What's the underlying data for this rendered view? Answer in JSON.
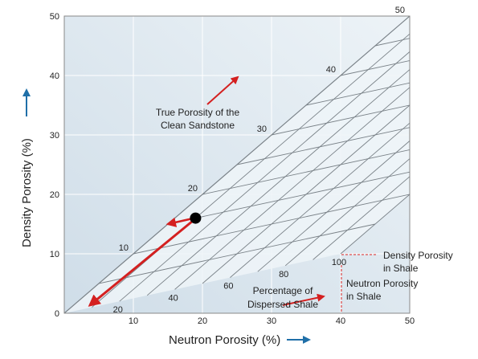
{
  "chart_data": {
    "type": "line",
    "xlabel": "Neutron Porosity (%)",
    "ylabel": "Density Porosity (%)",
    "xlim": [
      0,
      50
    ],
    "ylim": [
      0,
      50
    ],
    "x_ticks": [
      "10",
      "20",
      "30",
      "40",
      "50"
    ],
    "y_ticks": [
      "0",
      "10",
      "20",
      "30",
      "40",
      "50"
    ],
    "grid": true,
    "shale_point": {
      "neutron": 40,
      "density": 10
    },
    "clean_sand_line": {
      "x": [
        0,
        50
      ],
      "y": [
        0,
        50
      ]
    },
    "true_porosity_lines": [
      5,
      10,
      15,
      20,
      25,
      30,
      35,
      40,
      45,
      50
    ],
    "true_porosity_labels": [
      {
        "porosity": 10,
        "text": "10"
      },
      {
        "porosity": 20,
        "text": "20"
      },
      {
        "porosity": 30,
        "text": "30"
      },
      {
        "porosity": 40,
        "text": "40"
      },
      {
        "porosity": 50,
        "text": "50"
      }
    ],
    "dispersed_shale_lines": [
      10,
      20,
      30,
      40,
      50,
      60,
      70,
      80,
      90,
      100
    ],
    "dispersed_shale_labels": [
      {
        "percent": 20,
        "text": "20"
      },
      {
        "percent": 40,
        "text": "40"
      },
      {
        "percent": 60,
        "text": "60"
      },
      {
        "percent": 80,
        "text": "80"
      },
      {
        "percent": 100,
        "text": "100"
      }
    ],
    "data_point": {
      "neutron": 19,
      "density": 16
    },
    "annotations": {
      "true_porosity": [
        "True Porosity of the",
        "Clean Sandstone"
      ],
      "dispersed_shale": [
        "Percentage of",
        "Dispersed Shale"
      ],
      "density_shale": [
        "Density Porosity",
        "in Shale"
      ],
      "neutron_shale": [
        "Neutron Porosity",
        "in Shale"
      ]
    },
    "colors": {
      "plot_background": "#dde8f0",
      "grid": "#ffffff",
      "chart_lines": "#7a8288",
      "arrows": "#d42020",
      "axis_arrows": "#1f6fa8",
      "point": "#000000"
    }
  }
}
